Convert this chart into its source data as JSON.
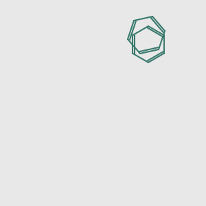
{
  "bg_color": "#e8e8e8",
  "bond_color": "#3a7a6e",
  "n_color": "#2233cc",
  "o_color": "#cc2200",
  "c_color": "#3a7a6e",
  "lw": 1.5,
  "figsize": [
    3.0,
    3.0
  ],
  "dpi": 100
}
